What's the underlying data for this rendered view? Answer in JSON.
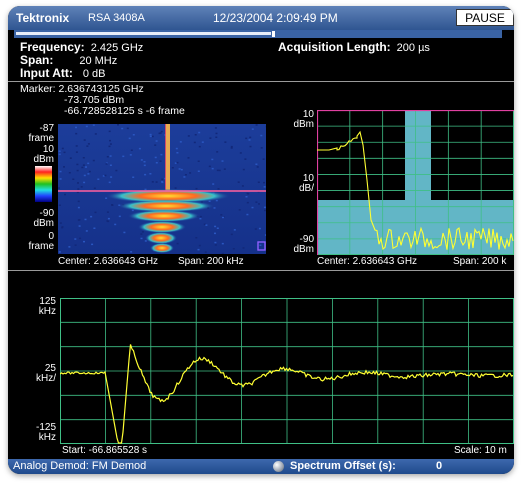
{
  "titlebar": {
    "brand": "Tektronix",
    "model": "RSA 3408A",
    "datetime": "12/23/2004 2:09:49 PM",
    "pause_label": "PAUSE"
  },
  "settings": {
    "frequency_label": "Frequency:",
    "frequency_value": "2.425 GHz",
    "span_label": "Span:",
    "span_value": "20 MHz",
    "input_att_label": "Input Att:",
    "input_att_value": "0 dB",
    "acq_length_label": "Acquisition Length:",
    "acq_length_value": "200 µs"
  },
  "marker": {
    "line1": "Marker: 2.636743125 GHz",
    "line2": "-73.705 dBm",
    "line3": "-66.728528125 s   -6 frame"
  },
  "spectrogram": {
    "top_frame": "-87",
    "frame_unit": "frame",
    "scale_top": "10",
    "unit": "dBm",
    "scale_bottom": "-90",
    "bottom_frame": "0",
    "center": "Center: 2.636643 GHz",
    "span": "Span: 200 kHz"
  },
  "spectrum": {
    "ref_level": "10",
    "ref_unit": "dBm",
    "div_value": "10",
    "div_unit": "dB/",
    "bottom_level": "-90",
    "bottom_unit": "dBm",
    "center": "Center: 2.636643 GHz",
    "span": "Span: 200 k"
  },
  "demod": {
    "top_value": "125",
    "top_unit": "kHz",
    "mid_value": "25",
    "mid_unit": "kHz/",
    "bottom_value": "-125",
    "bottom_unit": "kHz",
    "start": "Start: -66.865528 s",
    "scale": "Scale: 10 m"
  },
  "footer": {
    "mode": "Analog Demod: FM Demod",
    "offset_label": "Spectrum Offset (s):",
    "offset_value": "0",
    "knob_icon": "knob-icon"
  },
  "colors": {
    "trace": "#ffff33",
    "grid": "#3fbf86",
    "spectrum_fill": "#62b6c6",
    "accent_blue": "#2f5591"
  }
}
